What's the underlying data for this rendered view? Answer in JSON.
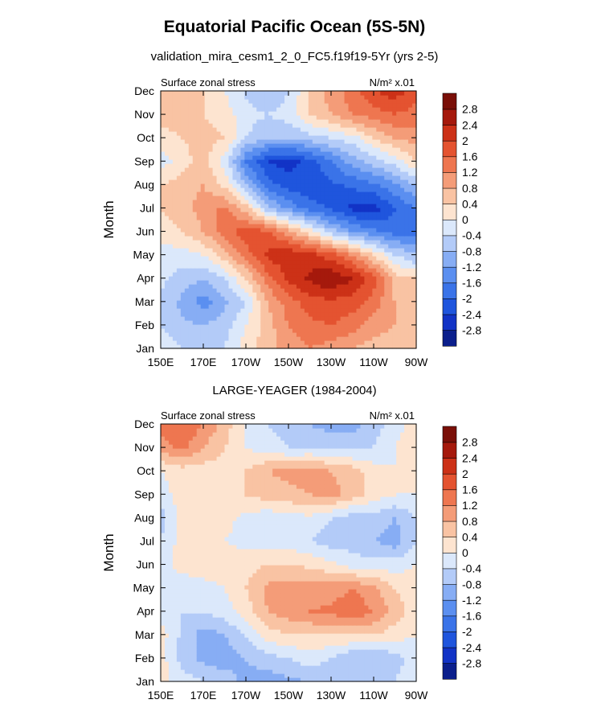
{
  "figure": {
    "title": "Equatorial Pacific Ocean (5S-5N)"
  },
  "colorbar": {
    "levels": [
      -2.8,
      -2.4,
      -2,
      -1.6,
      -1.2,
      -0.8,
      -0.4,
      0,
      0.4,
      0.8,
      1.2,
      1.6,
      2,
      2.4,
      2.8
    ],
    "labels": [
      "-2.8",
      "-2.4",
      "-2",
      "-1.6",
      "-1.2",
      "-0.8",
      "-0.4",
      "0",
      "0.4",
      "0.8",
      "1.2",
      "1.6",
      "2",
      "2.4",
      "2.8"
    ],
    "colors": [
      "#0b1f8c",
      "#1233c6",
      "#1f55dd",
      "#3a73e8",
      "#5b8ff0",
      "#87adf4",
      "#b3cbf8",
      "#dbe8fb",
      "#fde4d0",
      "#f9c3a3",
      "#f49c78",
      "#ee7650",
      "#e45330",
      "#cc3117",
      "#a5190c",
      "#7a0f08"
    ]
  },
  "chart_data": [
    {
      "type": "heatmap",
      "title": "validation_mira_cesm1_2_0_FC5.f19f19-5Yr (yrs 2-5)",
      "left_label": "Surface zonal stress",
      "units_label": "N/m² x.01",
      "ylabel": "Month",
      "xlabel": "",
      "x_ticks": [
        "150E",
        "170E",
        "170W",
        "150W",
        "130W",
        "110W",
        "90W"
      ],
      "x_range": [
        150,
        270
      ],
      "y_ticks": [
        "Jan",
        "Feb",
        "Mar",
        "Apr",
        "May",
        "Jun",
        "Jul",
        "Aug",
        "Sep",
        "Oct",
        "Nov",
        "Dec"
      ],
      "x": [
        150,
        160,
        170,
        180,
        190,
        200,
        210,
        220,
        230,
        240,
        250,
        260,
        270
      ],
      "values": [
        [
          -0.2,
          -0.4,
          -0.5,
          -0.4,
          0.2,
          0.6,
          1.0,
          1.2,
          1.0,
          0.8,
          0.6,
          0.5,
          0.4
        ],
        [
          -0.4,
          -0.7,
          -0.8,
          -0.6,
          0.0,
          0.6,
          1.2,
          1.5,
          1.6,
          1.4,
          1.0,
          0.8,
          0.5
        ],
        [
          -0.5,
          -0.9,
          -1.4,
          -0.9,
          -0.4,
          0.8,
          1.4,
          1.8,
          1.9,
          1.8,
          1.4,
          0.8,
          0.5
        ],
        [
          -0.3,
          -0.6,
          -0.8,
          -0.4,
          0.4,
          1.4,
          2.1,
          2.5,
          2.8,
          2.4,
          1.8,
          0.6,
          0.4
        ],
        [
          -0.2,
          -0.2,
          0.0,
          0.6,
          1.4,
          2.1,
          2.3,
          2.2,
          1.8,
          1.2,
          0.4,
          -0.4,
          -0.8
        ],
        [
          0.2,
          0.4,
          0.8,
          1.4,
          1.8,
          1.7,
          1.0,
          0.2,
          -0.6,
          -1.2,
          -1.5,
          -1.8,
          -1.7
        ],
        [
          0.4,
          0.6,
          1.0,
          1.3,
          0.6,
          -0.6,
          -1.3,
          -1.8,
          -2.1,
          -2.5,
          -2.6,
          -2.0,
          -1.6
        ],
        [
          0.4,
          0.6,
          0.8,
          0.3,
          -0.8,
          -1.8,
          -2.2,
          -2.3,
          -2.1,
          -1.9,
          -1.7,
          -1.3,
          -0.8
        ],
        [
          -0.2,
          0.2,
          0.6,
          -0.2,
          -1.6,
          -2.4,
          -2.6,
          -2.2,
          -1.6,
          -1.0,
          -0.6,
          -0.2,
          0.4
        ],
        [
          0.2,
          0.4,
          0.6,
          0.4,
          -0.4,
          -0.8,
          -0.8,
          -0.6,
          -0.4,
          -0.2,
          0.4,
          0.8,
          1.0
        ],
        [
          0.6,
          0.6,
          0.4,
          0.2,
          -0.2,
          -0.4,
          -0.2,
          0.4,
          0.8,
          1.2,
          1.4,
          1.6,
          1.4
        ],
        [
          0.6,
          0.6,
          0.4,
          0.0,
          -0.5,
          -0.8,
          -0.4,
          0.4,
          1.0,
          1.4,
          2.0,
          2.2,
          1.8
        ]
      ]
    },
    {
      "type": "heatmap",
      "title": "LARGE-YEAGER (1984-2004)",
      "left_label": "Surface zonal stress",
      "units_label": "N/m² x.01",
      "ylabel": "Month",
      "xlabel": "",
      "x_ticks": [
        "150E",
        "170E",
        "170W",
        "150W",
        "130W",
        "110W",
        "90W"
      ],
      "x_range": [
        150,
        270
      ],
      "y_ticks": [
        "Jan",
        "Feb",
        "Mar",
        "Apr",
        "May",
        "Jun",
        "Jul",
        "Aug",
        "Sep",
        "Oct",
        "Nov",
        "Dec"
      ],
      "x": [
        150,
        160,
        170,
        180,
        190,
        200,
        210,
        220,
        230,
        240,
        250,
        260,
        270
      ],
      "values": [
        [
          0.2,
          -0.2,
          -0.4,
          -0.6,
          -0.9,
          -1.0,
          -0.9,
          -0.8,
          -0.7,
          -0.6,
          -0.5,
          -0.4,
          0.0
        ],
        [
          0.2,
          -0.6,
          -0.9,
          -1.0,
          -0.8,
          -0.6,
          -0.4,
          -0.2,
          -0.4,
          -0.8,
          -0.8,
          -0.6,
          -0.2
        ],
        [
          0.2,
          -0.5,
          -1.0,
          -0.8,
          -0.4,
          0.2,
          0.4,
          0.4,
          0.4,
          0.4,
          0.4,
          0.2,
          0.0
        ],
        [
          -0.2,
          -0.4,
          -0.4,
          -0.2,
          0.2,
          0.8,
          1.0,
          1.2,
          1.3,
          1.5,
          1.2,
          0.6,
          0.2
        ],
        [
          -0.2,
          -0.3,
          -0.2,
          0.0,
          0.4,
          0.9,
          1.0,
          1.0,
          1.0,
          1.2,
          0.9,
          0.4,
          0.2
        ],
        [
          -0.2,
          0.2,
          0.3,
          0.2,
          0.2,
          0.4,
          0.4,
          0.3,
          0.1,
          -0.2,
          -0.2,
          -0.2,
          0.0
        ],
        [
          -0.4,
          0.2,
          0.2,
          0.0,
          -0.1,
          -0.2,
          -0.2,
          -0.4,
          -0.6,
          -0.6,
          -0.8,
          -1.0,
          -0.4
        ],
        [
          -0.6,
          0.2,
          0.2,
          0.1,
          -0.1,
          -0.3,
          -0.2,
          -0.1,
          -0.4,
          -0.6,
          -0.6,
          -0.8,
          -0.4
        ],
        [
          -0.2,
          0.2,
          0.2,
          0.2,
          0.4,
          0.6,
          0.7,
          0.8,
          1.0,
          0.6,
          0.2,
          0.0,
          0.0
        ],
        [
          0.0,
          0.2,
          0.2,
          0.2,
          0.4,
          0.8,
          0.9,
          1.0,
          0.8,
          0.6,
          0.2,
          0.0,
          0.2
        ],
        [
          1.0,
          1.3,
          0.8,
          0.4,
          0.0,
          -0.2,
          -0.4,
          -0.4,
          -0.4,
          -0.5,
          -0.4,
          0.0,
          0.4
        ],
        [
          1.4,
          1.6,
          1.2,
          0.6,
          0.0,
          -0.4,
          -0.6,
          -0.8,
          -1.0,
          -1.0,
          -0.6,
          -0.2,
          0.2
        ]
      ]
    }
  ]
}
